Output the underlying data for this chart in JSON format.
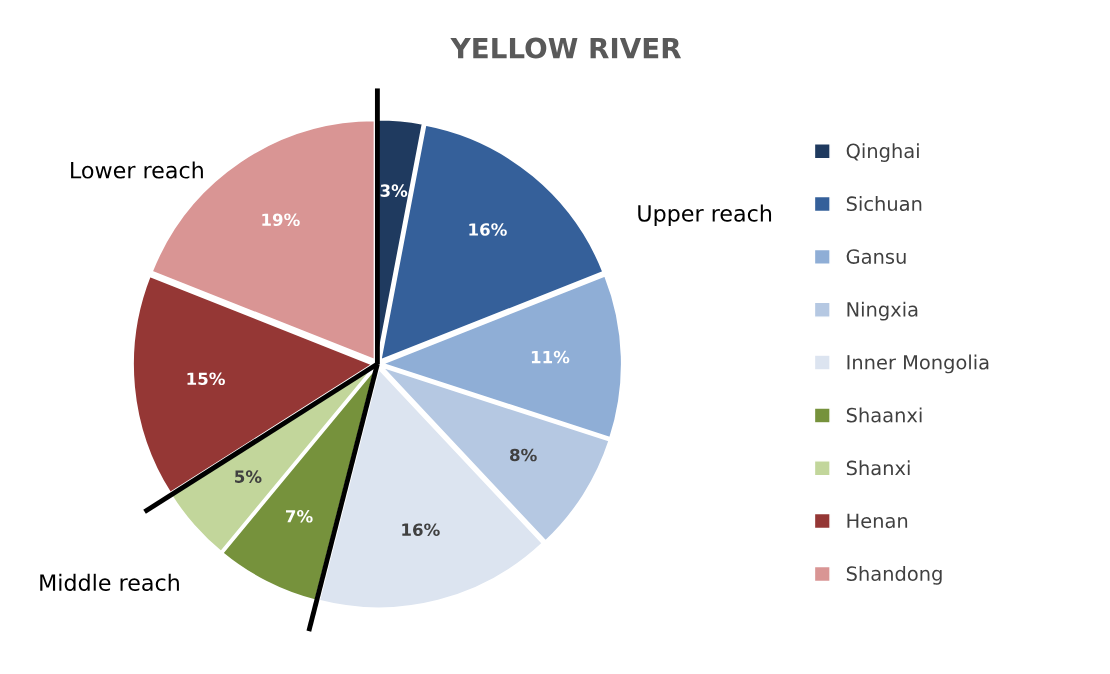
{
  "chart_data": {
    "type": "pie",
    "title": "YELLOW RIVER",
    "categories": [
      "Qinghai",
      "Sichuan",
      "Gansu",
      "Ningxia",
      "Inner Mongolia",
      "Shaanxi",
      "Shanxi",
      "Henan",
      "Shandong"
    ],
    "values": [
      3,
      16,
      11,
      8,
      16,
      7,
      5,
      15,
      19
    ],
    "colors": [
      "#1f3a5f",
      "#35609a",
      "#8faed6",
      "#b5c8e2",
      "#dce4f0",
      "#76923c",
      "#c2d69b",
      "#953735",
      "#d99594"
    ],
    "value_labels": [
      "3%",
      "16%",
      "11%",
      "8%",
      "16%",
      "7%",
      "5%",
      "15%",
      "19%"
    ],
    "legend": "right",
    "annotations": [
      "Upper reach",
      "Middle reach",
      "Lower reach"
    ]
  }
}
